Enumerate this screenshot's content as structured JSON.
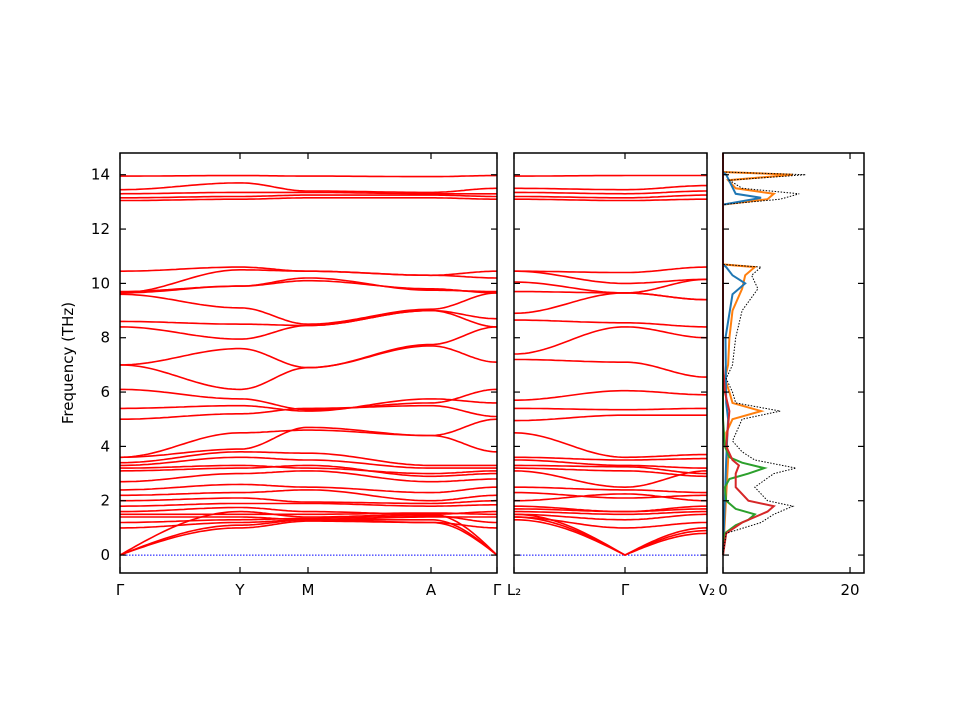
{
  "chart_data": [
    {
      "type": "line",
      "panel": "band-structure-1",
      "ylabel": "Frequency (THz)",
      "ylim": [
        -0.66,
        14.8
      ],
      "yticks": [
        "0",
        "2",
        "4",
        "6",
        "8",
        "10",
        "12",
        "14"
      ],
      "xtick_labels": [
        "Γ",
        "Y",
        "M",
        "A",
        "Γ"
      ],
      "line_color": "#ff0000",
      "zero_line_color": "#0000ff",
      "bands": [
        [
          13.95,
          13.97,
          13.95,
          13.93,
          13.97
        ],
        [
          13.45,
          13.7,
          13.4,
          13.35,
          13.5
        ],
        [
          13.3,
          13.35,
          13.35,
          13.3,
          13.3
        ],
        [
          13.15,
          13.2,
          13.25,
          13.25,
          13.2
        ],
        [
          13.05,
          13.1,
          13.15,
          13.15,
          13.1
        ],
        [
          10.45,
          10.6,
          10.45,
          10.3,
          10.45
        ],
        [
          9.65,
          10.5,
          10.45,
          10.3,
          10.2
        ],
        [
          9.7,
          9.9,
          10.2,
          9.75,
          9.7
        ],
        [
          9.65,
          9.9,
          10.1,
          9.8,
          9.65
        ],
        [
          9.6,
          9.1,
          8.5,
          9.05,
          9.65
        ],
        [
          8.6,
          8.5,
          8.45,
          9.0,
          8.7
        ],
        [
          8.4,
          7.95,
          8.45,
          9.0,
          8.4
        ],
        [
          7.0,
          7.6,
          6.9,
          7.75,
          8.4
        ],
        [
          7.0,
          6.1,
          6.9,
          7.7,
          7.1
        ],
        [
          6.1,
          5.75,
          5.35,
          5.6,
          6.1
        ],
        [
          5.4,
          5.5,
          5.3,
          5.75,
          5.6
        ],
        [
          5.0,
          5.2,
          5.4,
          5.5,
          5.1
        ],
        [
          3.6,
          4.5,
          4.6,
          4.4,
          5.0
        ],
        [
          3.6,
          3.9,
          4.7,
          4.4,
          3.8
        ],
        [
          3.4,
          3.8,
          3.75,
          3.3,
          3.3
        ],
        [
          3.3,
          3.6,
          3.5,
          3.2,
          3.2
        ],
        [
          3.2,
          3.3,
          3.2,
          3.0,
          3.1
        ],
        [
          3.1,
          3.2,
          3.3,
          2.9,
          3.0
        ],
        [
          2.7,
          3.0,
          3.1,
          2.7,
          2.8
        ],
        [
          2.4,
          2.6,
          2.5,
          2.3,
          2.5
        ],
        [
          2.2,
          2.3,
          2.4,
          2.0,
          2.2
        ],
        [
          2.0,
          2.1,
          1.95,
          1.9,
          2.0
        ],
        [
          1.8,
          1.9,
          1.9,
          1.8,
          1.85
        ],
        [
          1.6,
          1.75,
          1.6,
          1.5,
          1.6
        ],
        [
          1.5,
          1.5,
          1.5,
          1.55,
          1.5
        ],
        [
          1.4,
          1.4,
          1.3,
          1.4,
          1.4
        ],
        [
          1.2,
          1.3,
          1.35,
          1.45,
          1.2
        ],
        [
          1.0,
          1.2,
          1.3,
          1.2,
          1.0
        ],
        [
          0,
          1.0,
          1.25,
          1.2,
          0
        ],
        [
          0,
          1.1,
          1.3,
          1.3,
          0
        ],
        [
          0,
          1.6,
          1.4,
          1.5,
          0
        ]
      ]
    },
    {
      "type": "line",
      "panel": "band-structure-2",
      "ylim": [
        -0.66,
        14.8
      ],
      "xtick_labels": [
        "L₂",
        "Γ",
        "V₂"
      ],
      "line_color": "#ff0000",
      "bands": [
        [
          13.95,
          13.97,
          13.97
        ],
        [
          13.5,
          13.45,
          13.6
        ],
        [
          13.35,
          13.3,
          13.4
        ],
        [
          13.2,
          13.15,
          13.25
        ],
        [
          13.1,
          13.05,
          13.1
        ],
        [
          10.45,
          10.4,
          10.6
        ],
        [
          10.45,
          10.0,
          10.15
        ],
        [
          10.05,
          9.65,
          9.4
        ],
        [
          9.7,
          9.65,
          9.4
        ],
        [
          8.9,
          9.65,
          10.15
        ],
        [
          8.65,
          8.55,
          8.4
        ],
        [
          7.4,
          8.4,
          8.0
        ],
        [
          7.2,
          7.1,
          6.55
        ],
        [
          5.7,
          6.05,
          5.9
        ],
        [
          5.4,
          5.35,
          5.4
        ],
        [
          4.95,
          5.15,
          5.15
        ],
        [
          4.5,
          3.6,
          3.7
        ],
        [
          3.6,
          3.5,
          3.55
        ],
        [
          3.5,
          3.3,
          3.2
        ],
        [
          3.3,
          3.25,
          3.0
        ],
        [
          3.2,
          3.1,
          2.9
        ],
        [
          3.1,
          2.5,
          3.1
        ],
        [
          2.5,
          2.4,
          2.3
        ],
        [
          2.3,
          2.1,
          2.2
        ],
        [
          2.0,
          2.25,
          2.0
        ],
        [
          1.8,
          1.6,
          1.8
        ],
        [
          1.7,
          1.6,
          1.7
        ],
        [
          1.6,
          1.5,
          1.6
        ],
        [
          1.5,
          1.3,
          1.5
        ],
        [
          1.4,
          1.0,
          1.2
        ],
        [
          1.5,
          0,
          1.0
        ],
        [
          1.4,
          0,
          0.9
        ],
        [
          1.3,
          0,
          0.8
        ]
      ]
    },
    {
      "type": "line",
      "panel": "dos",
      "xlim": [
        0,
        22.2
      ],
      "ylim": [
        -0.66,
        14.8
      ],
      "xticks": [
        "0",
        "20"
      ],
      "series": [
        {
          "color": "#000000",
          "style": "dotted",
          "points": [
            [
              0,
              0
            ],
            [
              0.8,
              0.5
            ],
            [
              1.2,
              6
            ],
            [
              1.5,
              8
            ],
            [
              1.8,
              11
            ],
            [
              2.0,
              7
            ],
            [
              2.5,
              5
            ],
            [
              3.0,
              8
            ],
            [
              3.2,
              11.5
            ],
            [
              3.5,
              5
            ],
            [
              3.8,
              3
            ],
            [
              4.2,
              1.5
            ],
            [
              5.0,
              3
            ],
            [
              5.3,
              9
            ],
            [
              5.6,
              2
            ],
            [
              6.0,
              1.5
            ],
            [
              6.5,
              0.5
            ],
            [
              7.0,
              1.5
            ],
            [
              8.0,
              2
            ],
            [
              9.0,
              3
            ],
            [
              9.8,
              5.5
            ],
            [
              10.3,
              4.5
            ],
            [
              10.6,
              6
            ],
            [
              10.7,
              0
            ],
            [
              12.9,
              0
            ],
            [
              13.1,
              9
            ],
            [
              13.3,
              12
            ],
            [
              13.5,
              3
            ],
            [
              13.8,
              1
            ],
            [
              14.0,
              13
            ],
            [
              14.1,
              0
            ],
            [
              14.8,
              0
            ]
          ]
        },
        {
          "color": "#ff7f0e",
          "style": "solid",
          "points": [
            [
              0,
              0
            ],
            [
              3.5,
              0.8
            ],
            [
              4.5,
              0.5
            ],
            [
              5.0,
              1.5
            ],
            [
              5.3,
              6
            ],
            [
              5.6,
              1.5
            ],
            [
              6.0,
              1
            ],
            [
              6.5,
              0.3
            ],
            [
              7.0,
              0.8
            ],
            [
              8.0,
              1
            ],
            [
              9.0,
              1.5
            ],
            [
              9.8,
              3
            ],
            [
              10.3,
              3.5
            ],
            [
              10.6,
              5
            ],
            [
              10.7,
              0
            ],
            [
              12.9,
              0
            ],
            [
              13.1,
              7
            ],
            [
              13.3,
              8
            ],
            [
              13.5,
              2
            ],
            [
              13.8,
              0.8
            ],
            [
              14.0,
              11
            ],
            [
              14.1,
              0
            ],
            [
              14.8,
              0
            ]
          ]
        },
        {
          "color": "#1f77b4",
          "style": "solid",
          "points": [
            [
              0,
              0
            ],
            [
              3.5,
              0.5
            ],
            [
              5.0,
              0.8
            ],
            [
              5.6,
              0.5
            ],
            [
              8.0,
              0.4
            ],
            [
              9.6,
              1.5
            ],
            [
              10.0,
              3.5
            ],
            [
              10.3,
              1.5
            ],
            [
              10.6,
              0.5
            ],
            [
              10.7,
              0
            ],
            [
              12.9,
              0
            ],
            [
              13.15,
              6
            ],
            [
              13.3,
              2
            ],
            [
              14.0,
              0.5
            ],
            [
              14.1,
              0
            ],
            [
              14.8,
              0
            ]
          ]
        },
        {
          "color": "#2ca02c",
          "style": "solid",
          "points": [
            [
              0,
              0
            ],
            [
              0.8,
              0.3
            ],
            [
              1.1,
              2
            ],
            [
              1.3,
              4
            ],
            [
              1.5,
              5
            ],
            [
              1.7,
              2
            ],
            [
              2.0,
              0.5
            ],
            [
              2.5,
              0.3
            ],
            [
              2.8,
              1
            ],
            [
              3.0,
              4
            ],
            [
              3.2,
              6.5
            ],
            [
              3.4,
              3
            ],
            [
              3.6,
              1
            ],
            [
              4.0,
              0.3
            ],
            [
              5.0,
              0
            ],
            [
              14.8,
              0
            ]
          ]
        },
        {
          "color": "#d62728",
          "style": "solid",
          "points": [
            [
              0,
              0
            ],
            [
              0.8,
              0.5
            ],
            [
              1.2,
              3
            ],
            [
              1.6,
              7
            ],
            [
              1.8,
              8
            ],
            [
              2.0,
              4
            ],
            [
              2.5,
              2
            ],
            [
              3.0,
              2
            ],
            [
              3.3,
              2.5
            ],
            [
              3.5,
              1.5
            ],
            [
              4.0,
              0.5
            ],
            [
              5.3,
              1
            ],
            [
              6.0,
              0.3
            ],
            [
              7.0,
              0
            ],
            [
              14.8,
              0
            ]
          ]
        }
      ]
    }
  ]
}
